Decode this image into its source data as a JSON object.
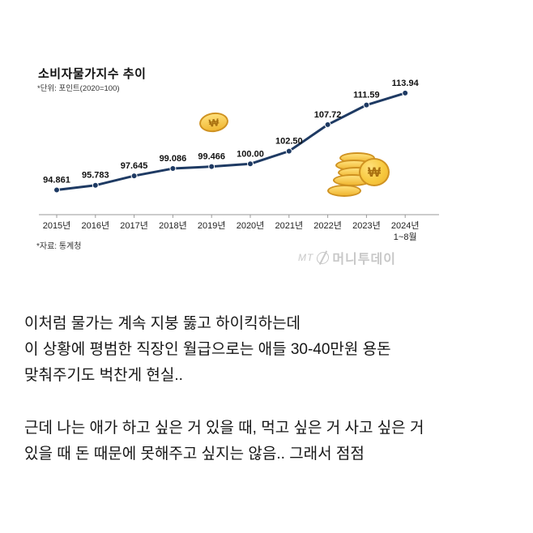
{
  "chart": {
    "title": "소비자물가지수 추이",
    "unit_note": "*단위: 포인트(2020=100)",
    "source_note": "*자료: 통계청",
    "watermark": {
      "prefix": "MT",
      "name": "머니투데이"
    }
  },
  "chart_data": {
    "type": "line",
    "title": "소비자물가지수 추이",
    "unit": "포인트(2020=100)",
    "categories": [
      "2015년",
      "2016년",
      "2017년",
      "2018년",
      "2019년",
      "2020년",
      "2021년",
      "2022년",
      "2023년",
      "2024년"
    ],
    "last_category_sub": "1~8월",
    "values": [
      94.861,
      95.783,
      97.645,
      99.086,
      99.466,
      100.0,
      102.5,
      107.72,
      111.59,
      113.94
    ],
    "labels": [
      "94.861",
      "95.783",
      "97.645",
      "99.086",
      "99.466",
      "100.00",
      "102.50",
      "107.72",
      "111.59",
      "113.94"
    ],
    "ylim": [
      90,
      116
    ],
    "line_color": "#1e3a63",
    "axis_color": "#9a9a9a",
    "label_color": "#111111",
    "grid": false,
    "legend": "none",
    "source": "통계청"
  },
  "icons": {
    "coin_symbol": "₩"
  },
  "body": {
    "p1": [
      "이처럼 물가는 계속 지붕 뚫고 하이킥하는데",
      "이 상황에 평범한 직장인 월급으로는 애들 30-40만원 용돈",
      "맞춰주기도 벅찬게 현실.."
    ],
    "p2": [
      "근데 나는 애가 하고 싶은 거 있을 때, 먹고 싶은 거 사고 싶은 거",
      "있을 때 돈 때문에 못해주고 싶지는 않음.. 그래서 점점"
    ]
  }
}
